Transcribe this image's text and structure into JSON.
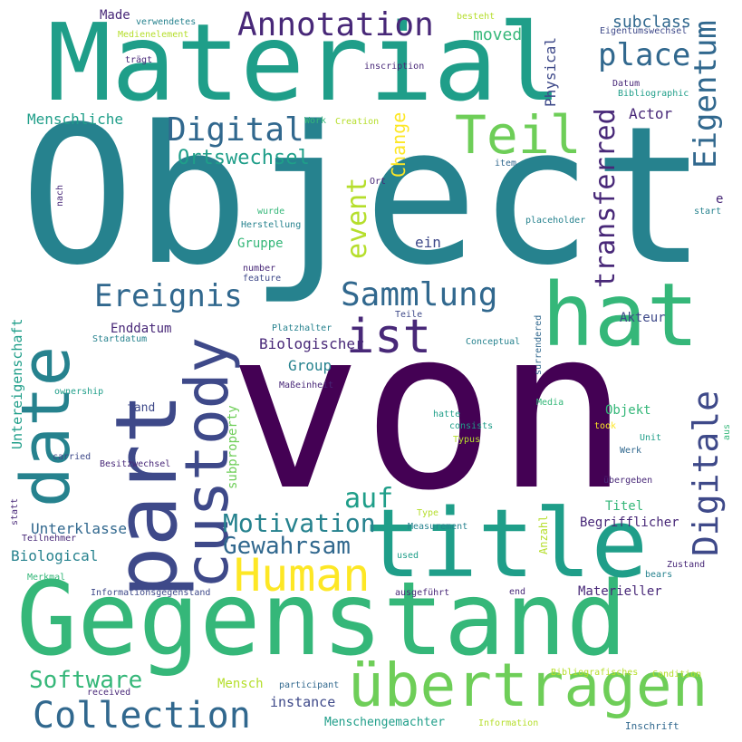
{
  "colors": {
    "deep_purple": "#440154",
    "indigo": "#482878",
    "slate_blue": "#3e4989",
    "steel_blue": "#31688e",
    "teal_blue": "#26828e",
    "teal": "#1f9e89",
    "sea_green": "#35b779",
    "green": "#6ece58",
    "lime": "#b5de2b",
    "yellow": "#fde725",
    "background": "#ffffff"
  },
  "words": [
    "Object",
    "von",
    "Gegenstand",
    "Material",
    "title",
    "hat",
    "part",
    "custody",
    "übertragen",
    "date",
    "Human",
    "Digitale",
    "Teil",
    "Annotation",
    "Collection",
    "Sammlung",
    "ist",
    "Eigentum",
    "transferred",
    "Digital",
    "Ereignis",
    "place",
    "Motivation",
    "Gewahrsam",
    "Software",
    "event",
    "auf",
    "Change",
    "Ortswechsel",
    "subclass",
    "moved",
    "Made",
    "Menschliche",
    "Physical",
    "Actor",
    "Biologischer",
    "Akteur",
    "Enddatum",
    "Group",
    "Gruppe",
    "ein",
    "Untereigenschaft",
    "Unterklasse",
    "Biological",
    "Begrifflicher",
    "Titel",
    "Objekt",
    "Materieller",
    "Mensch",
    "instance",
    "Menschengemachter",
    "subproperty",
    "fand",
    "Information",
    "Inschrift",
    "Bibliografisches",
    "Condition",
    "participant",
    "received",
    "Informationsgegenstand",
    "ausgeführt",
    "end",
    "Zustand",
    "bears",
    "used",
    "Measurement",
    "Type",
    "Anzahl",
    "übergeben",
    "Werk",
    "Unit",
    "took",
    "Typus",
    "consists",
    "hatte",
    "Media",
    "aus",
    "Maßeinheit",
    "Conceptual",
    "Teile",
    "Platzhalter",
    "feature",
    "number",
    "Herstellung",
    "wurde",
    "placeholder",
    "start",
    "e",
    "item",
    "Ort",
    "Creation",
    "Work",
    "Bibliographic",
    "Datum",
    "inscription",
    "trägt",
    "verwendetes",
    "Medienelement",
    "besteht",
    "Eigentumswechsel",
    "nach",
    "Startdatum",
    "ownership",
    "carried",
    "Besitzwechsel",
    "statt",
    "Teilnehmer",
    "Merkmal",
    "surrendered"
  ]
}
